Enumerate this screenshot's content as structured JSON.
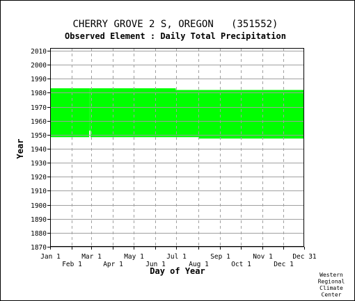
{
  "chart_data": {
    "type": "bar",
    "title": "CHERRY GROVE 2 S, OREGON   (351552)",
    "subtitle": "Observed Element : Daily Total Precipitation",
    "xlabel": "Day of Year",
    "ylabel": "Year",
    "xlim": [
      1,
      365
    ],
    "ylim": [
      1870,
      2012
    ],
    "yticks": [
      1870,
      1880,
      1890,
      1900,
      1910,
      1920,
      1930,
      1940,
      1950,
      1960,
      1970,
      1980,
      1990,
      2000,
      2010
    ],
    "xticks": [
      {
        "label": "Jan 1",
        "day": 1,
        "row": 0
      },
      {
        "label": "Feb 1",
        "day": 32,
        "row": 1
      },
      {
        "label": "Mar 1",
        "day": 60,
        "row": 0
      },
      {
        "label": "Apr 1",
        "day": 91,
        "row": 1
      },
      {
        "label": "May 1",
        "day": 121,
        "row": 0
      },
      {
        "label": "Jun 1",
        "day": 152,
        "row": 1
      },
      {
        "label": "Jul 1",
        "day": 182,
        "row": 0
      },
      {
        "label": "Aug 1",
        "day": 213,
        "row": 1
      },
      {
        "label": "Sep 1",
        "day": 244,
        "row": 0
      },
      {
        "label": "Oct 1",
        "day": 274,
        "row": 1
      },
      {
        "label": "Nov 1",
        "day": 305,
        "row": 0
      },
      {
        "label": "Dec 1",
        "day": 335,
        "row": 1
      },
      {
        "label": "Dec 31",
        "day": 365,
        "row": 0
      }
    ],
    "grid": true,
    "series": [
      {
        "color": "#00ff00",
        "values": [
          {
            "day_start": 1,
            "day_end": 57,
            "year_start": 1948.3,
            "year_end": 1983.2
          },
          {
            "day_start": 57,
            "day_end": 59,
            "year_start": 1953,
            "year_end": 1983.2
          },
          {
            "day_start": 59,
            "day_end": 181,
            "year_start": 1948.3,
            "year_end": 1983.2
          },
          {
            "day_start": 181,
            "day_end": 214,
            "year_start": 1948.3,
            "year_end": 1982.0
          },
          {
            "day_start": 214,
            "day_end": 365,
            "year_start": 1947.3,
            "year_end": 1982.0
          }
        ]
      }
    ]
  },
  "credit": [
    "Western",
    "Regional",
    "Climate",
    "Center"
  ]
}
